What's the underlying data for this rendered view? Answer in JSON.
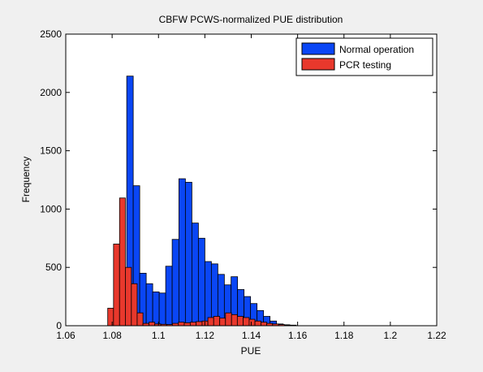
{
  "chart_data": {
    "type": "histogram",
    "title": "CBFW PCWS-normalized PUE distribution",
    "xlabel": "PUE",
    "ylabel": "Frequency",
    "xlim": [
      1.06,
      1.22
    ],
    "ylim": [
      0,
      2500
    ],
    "xticks": [
      1.06,
      1.08,
      1.1,
      1.12,
      1.14,
      1.16,
      1.18,
      1.2,
      1.22
    ],
    "xtick_labels": [
      "1.06",
      "1.08",
      "1.1",
      "1.12",
      "1.14",
      "1.16",
      "1.18",
      "1.2",
      "1.22"
    ],
    "yticks": [
      0,
      500,
      1000,
      1500,
      2000,
      2500
    ],
    "ytick_labels": [
      "0",
      "500",
      "1000",
      "1500",
      "2000",
      "2500"
    ],
    "grid": false,
    "legend_position": "top-right",
    "series": [
      {
        "name": "Normal operation",
        "color": "#0a46f5",
        "bins": [
          {
            "x0": 1.0834,
            "x1": 1.0863,
            "value": 210
          },
          {
            "x0": 1.0863,
            "x1": 1.0891,
            "value": 2140
          },
          {
            "x0": 1.0891,
            "x1": 1.0919,
            "value": 1200
          },
          {
            "x0": 1.0919,
            "x1": 1.0947,
            "value": 450
          },
          {
            "x0": 1.0947,
            "x1": 1.0975,
            "value": 360
          },
          {
            "x0": 1.0975,
            "x1": 1.1003,
            "value": 290
          },
          {
            "x0": 1.1003,
            "x1": 1.1031,
            "value": 280
          },
          {
            "x0": 1.1031,
            "x1": 1.1059,
            "value": 510
          },
          {
            "x0": 1.1059,
            "x1": 1.1088,
            "value": 740
          },
          {
            "x0": 1.1088,
            "x1": 1.1116,
            "value": 1260
          },
          {
            "x0": 1.1116,
            "x1": 1.1144,
            "value": 1230
          },
          {
            "x0": 1.1144,
            "x1": 1.1172,
            "value": 880
          },
          {
            "x0": 1.1172,
            "x1": 1.12,
            "value": 750
          },
          {
            "x0": 1.12,
            "x1": 1.1228,
            "value": 550
          },
          {
            "x0": 1.1228,
            "x1": 1.1256,
            "value": 530
          },
          {
            "x0": 1.1256,
            "x1": 1.1284,
            "value": 440
          },
          {
            "x0": 1.1284,
            "x1": 1.1313,
            "value": 350
          },
          {
            "x0": 1.1313,
            "x1": 1.1341,
            "value": 420
          },
          {
            "x0": 1.1341,
            "x1": 1.1369,
            "value": 310
          },
          {
            "x0": 1.1369,
            "x1": 1.1397,
            "value": 250
          },
          {
            "x0": 1.1397,
            "x1": 1.1425,
            "value": 190
          },
          {
            "x0": 1.1425,
            "x1": 1.1453,
            "value": 130
          },
          {
            "x0": 1.1453,
            "x1": 1.1481,
            "value": 80
          },
          {
            "x0": 1.1481,
            "x1": 1.1509,
            "value": 40
          },
          {
            "x0": 1.1509,
            "x1": 1.1538,
            "value": 15
          },
          {
            "x0": 1.1538,
            "x1": 1.1566,
            "value": 8
          },
          {
            "x0": 1.1566,
            "x1": 1.1594,
            "value": 5
          }
        ]
      },
      {
        "name": "PCR testing",
        "color": "#e8382c",
        "bins": [
          {
            "x0": 1.0781,
            "x1": 1.0806,
            "value": 150
          },
          {
            "x0": 1.0806,
            "x1": 1.0832,
            "value": 700
          },
          {
            "x0": 1.0832,
            "x1": 1.0857,
            "value": 1095
          },
          {
            "x0": 1.0857,
            "x1": 1.0883,
            "value": 500
          },
          {
            "x0": 1.0883,
            "x1": 1.0908,
            "value": 360
          },
          {
            "x0": 1.0908,
            "x1": 1.0933,
            "value": 110
          },
          {
            "x0": 1.0933,
            "x1": 1.0959,
            "value": 20
          },
          {
            "x0": 1.0959,
            "x1": 1.0984,
            "value": 30
          },
          {
            "x0": 1.0984,
            "x1": 1.101,
            "value": 15
          },
          {
            "x0": 1.101,
            "x1": 1.1035,
            "value": 12
          },
          {
            "x0": 1.1035,
            "x1": 1.106,
            "value": 10
          },
          {
            "x0": 1.106,
            "x1": 1.1086,
            "value": 20
          },
          {
            "x0": 1.1086,
            "x1": 1.1111,
            "value": 30
          },
          {
            "x0": 1.1111,
            "x1": 1.1137,
            "value": 25
          },
          {
            "x0": 1.1137,
            "x1": 1.1162,
            "value": 30
          },
          {
            "x0": 1.1162,
            "x1": 1.1188,
            "value": 35
          },
          {
            "x0": 1.1188,
            "x1": 1.1213,
            "value": 40
          },
          {
            "x0": 1.1213,
            "x1": 1.1238,
            "value": 70
          },
          {
            "x0": 1.1238,
            "x1": 1.1264,
            "value": 80
          },
          {
            "x0": 1.1264,
            "x1": 1.1289,
            "value": 65
          },
          {
            "x0": 1.1289,
            "x1": 1.1315,
            "value": 110
          },
          {
            "x0": 1.1315,
            "x1": 1.134,
            "value": 95
          },
          {
            "x0": 1.134,
            "x1": 1.1365,
            "value": 80
          },
          {
            "x0": 1.1365,
            "x1": 1.1391,
            "value": 70
          },
          {
            "x0": 1.1391,
            "x1": 1.1416,
            "value": 55
          },
          {
            "x0": 1.1416,
            "x1": 1.1442,
            "value": 40
          },
          {
            "x0": 1.1442,
            "x1": 1.1467,
            "value": 30
          },
          {
            "x0": 1.1467,
            "x1": 1.1492,
            "value": 20
          },
          {
            "x0": 1.1492,
            "x1": 1.1518,
            "value": 15
          },
          {
            "x0": 1.1518,
            "x1": 1.1543,
            "value": 10
          },
          {
            "x0": 1.1543,
            "x1": 1.1569,
            "value": 5
          }
        ]
      }
    ]
  }
}
